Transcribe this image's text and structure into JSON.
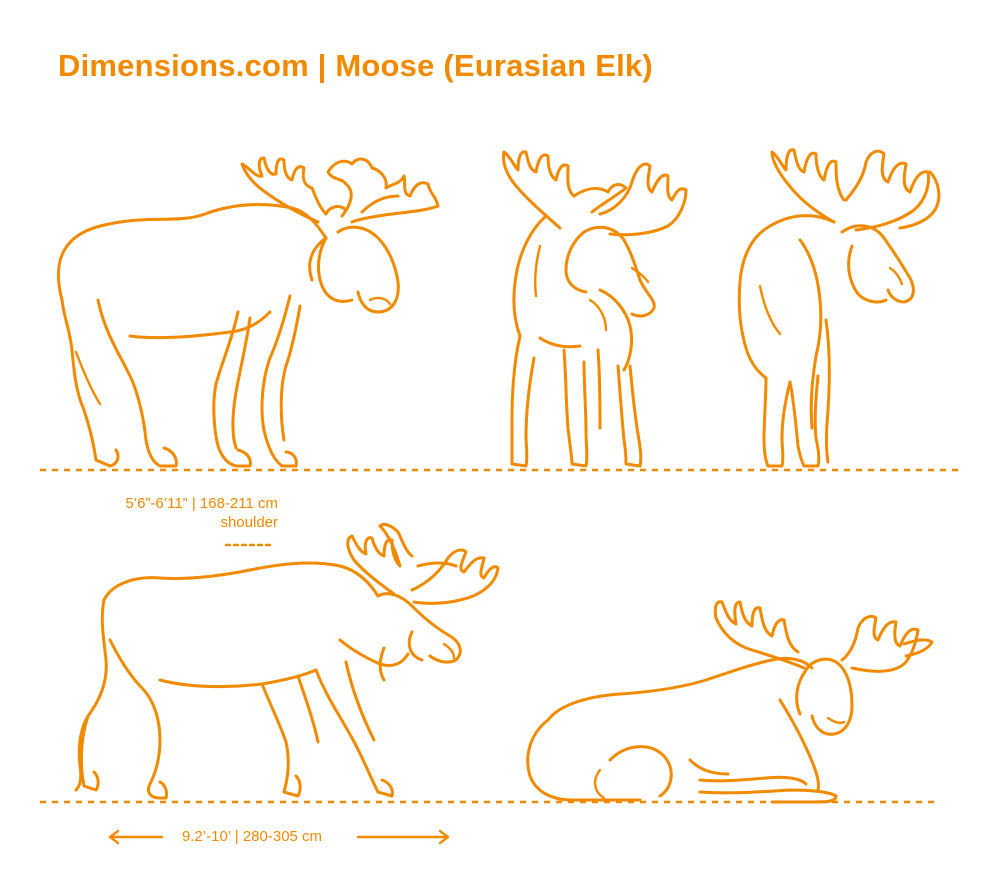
{
  "header": {
    "title": "Dimensions.com | Moose (Eurasian Elk)"
  },
  "dimensions": {
    "height_value": "5’6”-6’11” | 168-211 cm",
    "height_reference": "shoulder",
    "length_value": "9.2’-10’ | 280-305 cm"
  },
  "views": [
    "side-standing",
    "front-3q",
    "rear-3q",
    "side-walking",
    "lying-down"
  ],
  "colors": {
    "accent": "#F28A00",
    "background": "#FFFFFF"
  }
}
